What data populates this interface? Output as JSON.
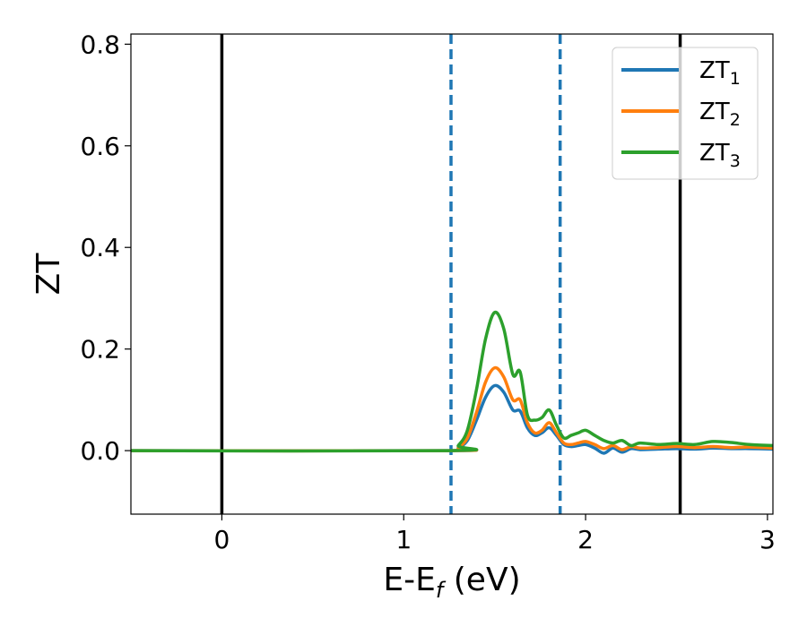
{
  "chart_data": {
    "type": "line",
    "title": "",
    "xlabel": {
      "main": "E-E",
      "sub": "f",
      "rest": " (eV)"
    },
    "ylabel": "ZT",
    "xlim": [
      -0.5,
      3.03
    ],
    "ylim": [
      -0.125,
      0.82
    ],
    "xticks": [
      0,
      1,
      2,
      3
    ],
    "xtick_labels": [
      "0",
      "1",
      "2",
      "3"
    ],
    "yticks": [
      0.0,
      0.2,
      0.4,
      0.6,
      0.8
    ],
    "ytick_labels": [
      "0.0",
      "0.2",
      "0.4",
      "0.6",
      "0.8"
    ],
    "grid": false,
    "legend_position": "top-right",
    "vlines": [
      {
        "x": 0.0,
        "color": "#000000",
        "style": "solid"
      },
      {
        "x": 2.52,
        "color": "#000000",
        "style": "solid"
      },
      {
        "x": 1.26,
        "color": "#1f77b4",
        "style": "dashed"
      },
      {
        "x": 1.86,
        "color": "#1f77b4",
        "style": "dashed"
      }
    ],
    "x": [
      -0.5,
      1.26,
      1.3,
      1.35,
      1.4,
      1.45,
      1.5,
      1.55,
      1.6,
      1.64,
      1.68,
      1.72,
      1.76,
      1.8,
      1.84,
      1.88,
      1.92,
      1.96,
      2.0,
      2.05,
      2.1,
      2.15,
      2.2,
      2.25,
      2.3,
      2.4,
      2.5,
      2.6,
      2.7,
      2.8,
      2.9,
      3.03
    ],
    "series": [
      {
        "name": "ZT",
        "name_sub": "1",
        "color": "#1f77b4",
        "values": [
          0.0,
          0.0,
          0.005,
          0.02,
          0.06,
          0.105,
          0.128,
          0.115,
          0.08,
          0.078,
          0.045,
          0.03,
          0.035,
          0.045,
          0.03,
          0.012,
          0.008,
          0.01,
          0.012,
          0.005,
          -0.005,
          0.005,
          -0.003,
          0.004,
          0.002,
          0.003,
          0.004,
          0.003,
          0.005,
          0.004,
          0.004,
          0.003
        ]
      },
      {
        "name": "ZT",
        "name_sub": "2",
        "color": "#ff7f0e",
        "values": [
          0.0,
          0.0,
          0.006,
          0.025,
          0.075,
          0.135,
          0.163,
          0.145,
          0.1,
          0.1,
          0.055,
          0.035,
          0.04,
          0.055,
          0.035,
          0.015,
          0.012,
          0.015,
          0.018,
          0.012,
          0.004,
          0.01,
          0.002,
          0.008,
          0.005,
          0.006,
          0.008,
          0.006,
          0.008,
          0.006,
          0.007,
          0.005
        ]
      },
      {
        "name": "ZT",
        "name_sub": "3",
        "color": "#2ca02c",
        "values": [
          0.0,
          0.0,
          0.01,
          0.04,
          0.12,
          0.22,
          0.272,
          0.24,
          0.15,
          0.155,
          0.07,
          0.06,
          0.065,
          0.08,
          0.05,
          0.025,
          0.03,
          0.035,
          0.04,
          0.03,
          0.02,
          0.015,
          0.02,
          0.01,
          0.015,
          0.012,
          0.014,
          0.012,
          0.018,
          0.016,
          0.012,
          0.01
        ]
      }
    ]
  }
}
